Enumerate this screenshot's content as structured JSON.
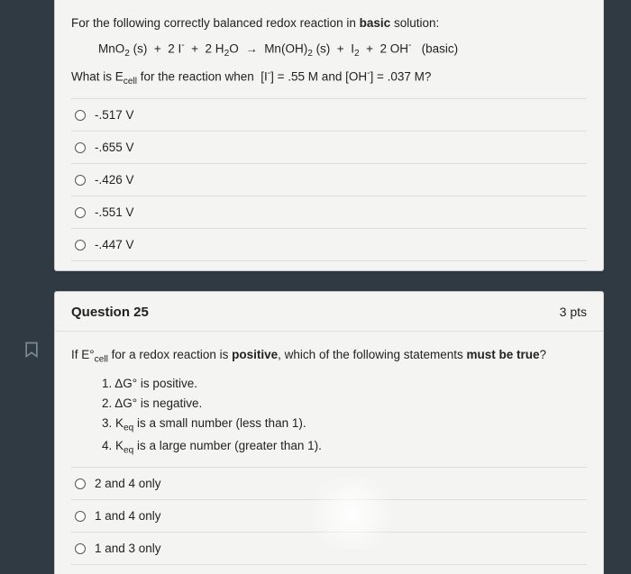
{
  "colors": {
    "page_bg": "#2f3a43",
    "card_bg": "#f4f4f2",
    "border": "#c9c9c7",
    "text": "#222"
  },
  "q24": {
    "stem_line1_html": "For the following correctly balanced redox reaction in <span class='bold'>basic</span> solution:",
    "equation_html": "MnO<sub>2</sub> (s) &nbsp;+&nbsp; 2 I<sup>-</sup> &nbsp;+&nbsp; 2 H<sub>2</sub>O &nbsp;→&nbsp; Mn(OH)<sub>2</sub> (s) &nbsp;+&nbsp; I<sub>2</sub> &nbsp;+&nbsp; 2 OH<sup>-</sup> &nbsp;&nbsp;(basic)",
    "stem_line2_html": "What is E<sub>cell</sub> for the reaction when &nbsp;[I<sup>-</sup>] = .55 M and [OH<sup>-</sup>] = .037 M?",
    "options": [
      "-.517 V",
      "-.655 V",
      "-.426 V",
      "-.551 V",
      "-.447 V"
    ]
  },
  "q25": {
    "title": "Question 25",
    "points": "3 pts",
    "stem_html": "If E°<sub>cell</sub> for a redox reaction is <span class='bold'>positive</span>, which of the following statements <span class='bold'>must be true</span>?",
    "statements": [
      "1.  ΔG° is positive.",
      "2.  ΔG° is negative.",
      "3.  K<sub>eq</sub> is a small number (less than 1).",
      "4.  K<sub>eq</sub> is a large number (greater than 1)."
    ],
    "options": [
      "2 and 4 only",
      "1 and 4 only",
      "1 and 3 only"
    ]
  }
}
